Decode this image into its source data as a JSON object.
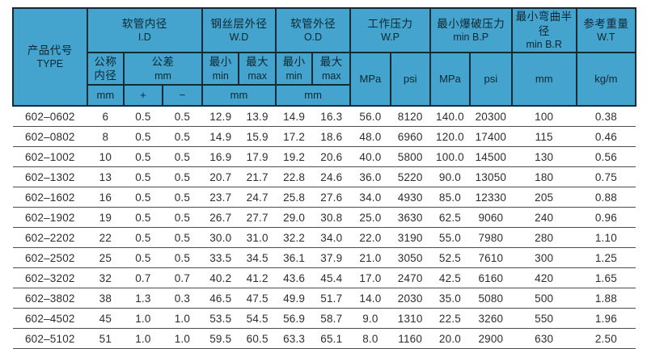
{
  "colors": {
    "header_bg": "#45a4ce",
    "header_border": "#132b35",
    "header_text": "#0e2630",
    "body_text": "#2d2d2d",
    "row_line": "#4c4c4c"
  },
  "table": {
    "header": {
      "product_code": {
        "zh": "产品代号",
        "en": "TYPE"
      },
      "groups": {
        "id": {
          "zh": "软管内径",
          "en": "I.D"
        },
        "wd": {
          "zh": "钢丝层外径",
          "en": "W.D"
        },
        "od": {
          "zh": "软管外径",
          "en": "O.D"
        },
        "wp": {
          "zh": "工作压力",
          "en": "W.P"
        },
        "bp": {
          "zh": "最小爆破压力",
          "en": "min B.P"
        },
        "br": {
          "zh": "最小弯曲半径",
          "en": "min B.R"
        },
        "wt": {
          "zh": "参考重量",
          "en": "W.T"
        }
      },
      "sub": {
        "nominal_line1": "公称",
        "nominal_line2": "内径",
        "tolerance": "公差",
        "unit_mm": "mm",
        "min_zh": "最小",
        "min_en": "min",
        "max_zh": "最大",
        "max_en": "max",
        "mpa": "MPa",
        "psi": "psi",
        "kgm": "kg/m",
        "plus": "+",
        "minus": "−"
      }
    },
    "rows": [
      [
        "602–0602",
        "6",
        "0.5",
        "0.5",
        "12.9",
        "13.9",
        "14.9",
        "16.3",
        "56.0",
        "8120",
        "140.0",
        "20300",
        "100",
        "0.38"
      ],
      [
        "602–0802",
        "8",
        "0.5",
        "0.5",
        "14.9",
        "15.9",
        "17.2",
        "18.6",
        "48.0",
        "6960",
        "120.0",
        "17400",
        "115",
        "0.46"
      ],
      [
        "602–1002",
        "10",
        "0.5",
        "0.5",
        "16.9",
        "17.9",
        "19.2",
        "20.6",
        "40.0",
        "5800",
        "100.0",
        "14500",
        "130",
        "0.56"
      ],
      [
        "602–1302",
        "13",
        "0.5",
        "0.5",
        "20.7",
        "21.7",
        "22.8",
        "24.6",
        "36.0",
        "5220",
        "90.0",
        "13050",
        "180",
        "0.75"
      ],
      [
        "602–1602",
        "16",
        "0.5",
        "0.5",
        "23.7",
        "24.7",
        "25.8",
        "27.6",
        "34.0",
        "4930",
        "85.0",
        "12330",
        "205",
        "0.88"
      ],
      [
        "602–1902",
        "19",
        "0.5",
        "0.5",
        "26.7",
        "27.7",
        "29.0",
        "30.8",
        "25.0",
        "3630",
        "62.5",
        "9060",
        "240",
        "0.96"
      ],
      [
        "602–2202",
        "22",
        "0.5",
        "0.5",
        "30.0",
        "31.0",
        "32.2",
        "34.0",
        "22.0",
        "3190",
        "55.0",
        "7980",
        "280",
        "1.10"
      ],
      [
        "602–2502",
        "25",
        "0.5",
        "0.5",
        "33.5",
        "34.5",
        "36.1",
        "37.9",
        "21.0",
        "3050",
        "52.5",
        "7610",
        "300",
        "1.25"
      ],
      [
        "602–3202",
        "32",
        "0.7",
        "0.7",
        "40.2",
        "41.2",
        "43.6",
        "45.4",
        "17.0",
        "2470",
        "42.5",
        "6160",
        "420",
        "1.65"
      ],
      [
        "602–3802",
        "38",
        "1.3",
        "0.3",
        "46.5",
        "47.5",
        "49.9",
        "51.7",
        "14.0",
        "2030",
        "35.0",
        "5080",
        "500",
        "1.88"
      ],
      [
        "602–4502",
        "45",
        "1.0",
        "1.0",
        "53.5",
        "54.5",
        "56.9",
        "58.7",
        "9.0",
        "1310",
        "22.5",
        "3260",
        "550",
        "1.96"
      ],
      [
        "602–5102",
        "51",
        "1.0",
        "1.0",
        "59.5",
        "60.5",
        "63.3",
        "65.1",
        "8.0",
        "1160",
        "20.0",
        "2900",
        "630",
        "2.50"
      ]
    ]
  }
}
